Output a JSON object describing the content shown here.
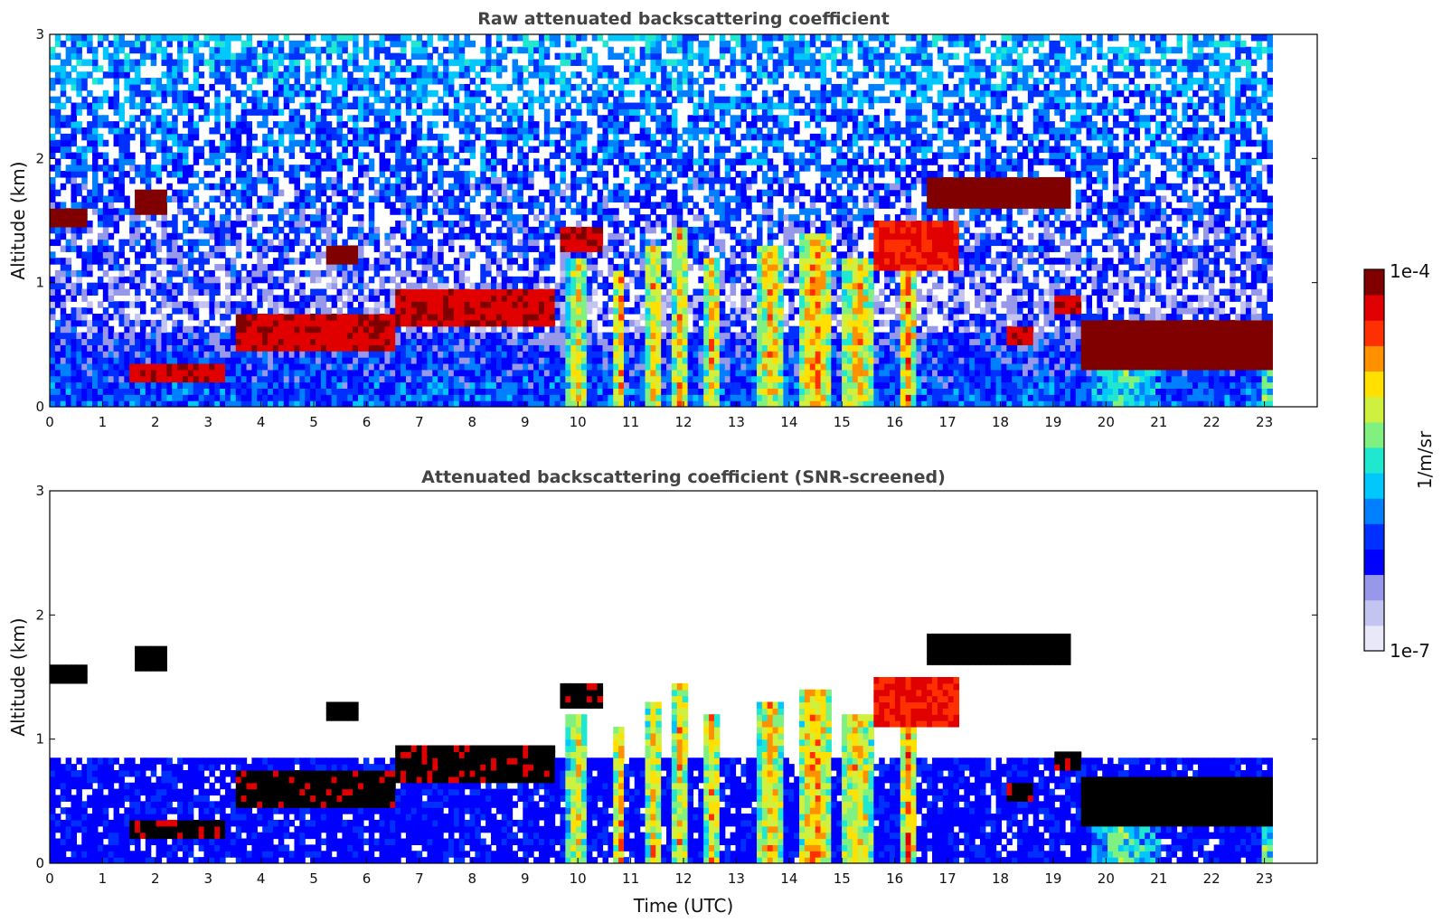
{
  "chart_data": [
    {
      "type": "heatmap",
      "title": "Raw attenuated backscattering coefficient",
      "xlabel": "",
      "ylabel": "Altitude (km)",
      "xlim": [
        0,
        24
      ],
      "ylim": [
        0,
        3
      ],
      "x_ticks": [
        "0",
        "1",
        "2",
        "3",
        "4",
        "5",
        "6",
        "7",
        "8",
        "9",
        "10",
        "11",
        "12",
        "13",
        "14",
        "15",
        "16",
        "17",
        "18",
        "19",
        "20",
        "21",
        "22",
        "23"
      ],
      "y_ticks": [
        "0",
        "1",
        "2",
        "3"
      ],
      "data_end_hour": 23.15,
      "grid": false,
      "cloud_layers": [
        {
          "t0": 0.0,
          "t1": 0.7,
          "base_km": 1.45,
          "top_km": 1.58,
          "level": 1.0
        },
        {
          "t0": 1.6,
          "t1": 2.2,
          "base_km": 1.55,
          "top_km": 1.75,
          "level": 1.0
        },
        {
          "t0": 1.5,
          "t1": 3.3,
          "base_km": 0.18,
          "top_km": 0.35,
          "level": 0.95
        },
        {
          "t0": 3.5,
          "t1": 6.5,
          "base_km": 0.45,
          "top_km": 0.75,
          "level": 0.95
        },
        {
          "t0": 5.2,
          "t1": 5.8,
          "base_km": 1.17,
          "top_km": 1.3,
          "level": 1.0
        },
        {
          "t0": 6.5,
          "t1": 9.6,
          "base_km": 0.65,
          "top_km": 0.95,
          "level": 0.95
        },
        {
          "t0": 9.7,
          "t1": 10.5,
          "base_km": 1.25,
          "top_km": 1.45,
          "level": 0.95
        },
        {
          "t0": 15.6,
          "t1": 17.2,
          "base_km": 1.1,
          "top_km": 1.5,
          "level": 0.9
        },
        {
          "t0": 16.6,
          "t1": 19.3,
          "base_km": 1.6,
          "top_km": 1.85,
          "level": 1.0
        },
        {
          "t0": 18.1,
          "t1": 18.6,
          "base_km": 0.5,
          "top_km": 0.65,
          "level": 0.95
        },
        {
          "t0": 19.0,
          "t1": 19.5,
          "base_km": 0.75,
          "top_km": 0.9,
          "level": 0.95
        },
        {
          "t0": 19.5,
          "t1": 23.15,
          "base_km": 0.3,
          "top_km": 0.7,
          "level": 1.0
        }
      ],
      "precip_columns": [
        {
          "t0": 9.8,
          "t1": 10.2,
          "top_km": 1.2,
          "level": 0.8
        },
        {
          "t0": 10.7,
          "t1": 10.9,
          "top_km": 1.1,
          "level": 0.9
        },
        {
          "t0": 11.3,
          "t1": 11.6,
          "top_km": 1.3,
          "level": 0.85
        },
        {
          "t0": 11.8,
          "t1": 12.1,
          "top_km": 1.45,
          "level": 0.85
        },
        {
          "t0": 12.4,
          "t1": 12.7,
          "top_km": 1.2,
          "level": 0.85
        },
        {
          "t0": 13.4,
          "t1": 13.9,
          "top_km": 1.3,
          "level": 0.85
        },
        {
          "t0": 14.2,
          "t1": 14.8,
          "top_km": 1.4,
          "level": 0.9
        },
        {
          "t0": 15.0,
          "t1": 15.6,
          "top_km": 1.2,
          "level": 0.85
        },
        {
          "t0": 16.1,
          "t1": 16.4,
          "top_km": 1.5,
          "level": 0.9
        },
        {
          "t0": 19.7,
          "t1": 21.0,
          "top_km": 0.4,
          "level": 0.65
        },
        {
          "t0": 22.9,
          "t1": 23.15,
          "top_km": 0.5,
          "level": 0.7
        }
      ]
    },
    {
      "type": "heatmap",
      "title": "Attenuated backscattering coefficient (SNR-screened)",
      "xlabel": "Time (UTC)",
      "ylabel": "Altitude (km)",
      "xlim": [
        0,
        24
      ],
      "ylim": [
        0,
        3
      ],
      "x_ticks": [
        "0",
        "1",
        "2",
        "3",
        "4",
        "5",
        "6",
        "7",
        "8",
        "9",
        "10",
        "11",
        "12",
        "13",
        "14",
        "15",
        "16",
        "17",
        "18",
        "19",
        "20",
        "21",
        "22",
        "23"
      ],
      "y_ticks": [
        "0",
        "1",
        "2",
        "3"
      ],
      "data_end_hour": 23.15,
      "grid": false,
      "screened": true,
      "saturated_color": "#000000"
    }
  ],
  "colorbar": {
    "label": "1/m/sr",
    "max_label": "1e-4",
    "min_label": "1e-7",
    "scale": "log",
    "colormap": "jet",
    "colors": [
      "#e8e8f8",
      "#c4c4f0",
      "#9898ea",
      "#0000ff",
      "#0030ff",
      "#0080ff",
      "#00c8ff",
      "#20e8d0",
      "#80f080",
      "#d0f040",
      "#ffe000",
      "#ff9000",
      "#ff3000",
      "#e00000",
      "#800000"
    ]
  }
}
